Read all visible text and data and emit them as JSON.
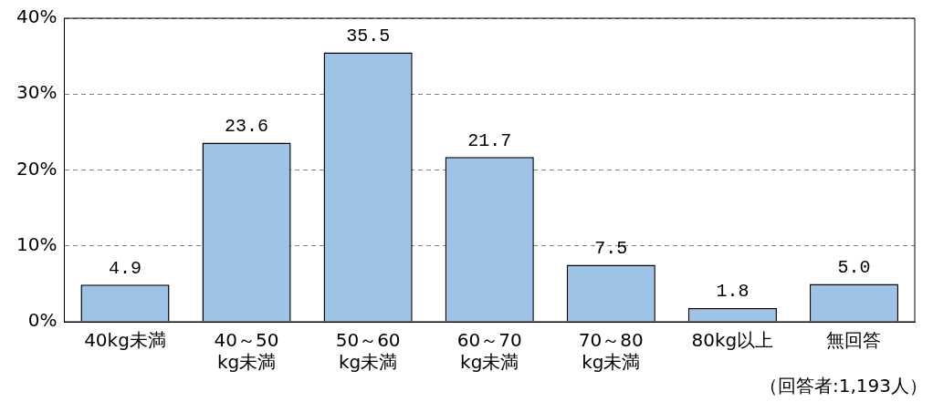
{
  "chart_data": {
    "type": "bar",
    "categories": [
      "40kg未満",
      "40～50\nkg未満",
      "50～60\nkg未満",
      "60～70\nkg未満",
      "70～80\nkg未満",
      "80kg以上",
      "無回答"
    ],
    "values": [
      4.9,
      23.6,
      35.5,
      21.7,
      7.5,
      1.8,
      5.0
    ],
    "value_labels": [
      "4.9",
      "23.6",
      "35.5",
      "21.7",
      "7.5",
      "1.8",
      "5.0"
    ],
    "color": "#9dc3e6",
    "ylim": [
      0,
      40
    ],
    "yticks": [
      {
        "value": 0,
        "label": "0%"
      },
      {
        "value": 10,
        "label": "10%"
      },
      {
        "value": 20,
        "label": "20%"
      },
      {
        "value": 30,
        "label": "30%"
      },
      {
        "value": 40,
        "label": "40%"
      }
    ],
    "grid": "y",
    "legend": false,
    "annotations": [
      "（回答者:1,193人）"
    ]
  }
}
